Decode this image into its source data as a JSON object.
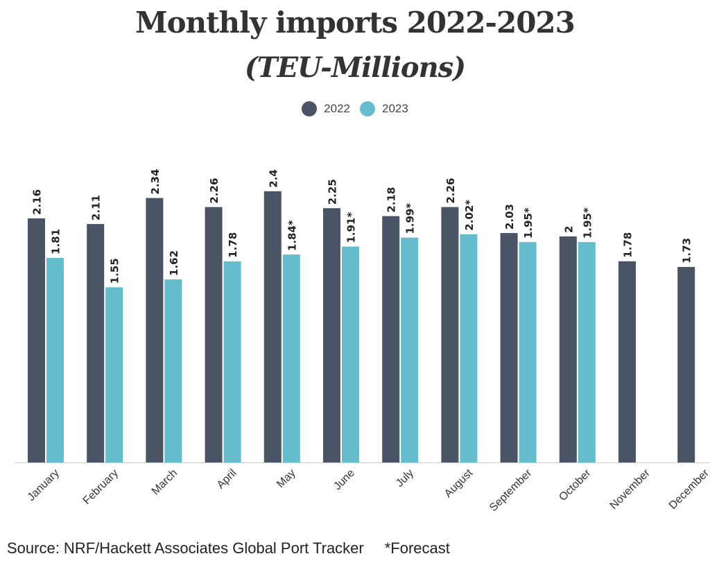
{
  "colors": {
    "series_2022": "#4a5464",
    "series_2023": "#64bccc",
    "axis": "#cccccc"
  },
  "chart_data": {
    "type": "bar",
    "title": "Monthly imports 2022-2023",
    "subtitle": "(TEU-Millions)",
    "legend_position": "top-center",
    "grid": false,
    "ylim": [
      0,
      2.6
    ],
    "categories": [
      "January",
      "February",
      "March",
      "April",
      "May",
      "June",
      "July",
      "August",
      "September",
      "October",
      "November",
      "December"
    ],
    "series": [
      {
        "name": "2022",
        "values": [
          2.16,
          2.11,
          2.34,
          2.26,
          2.4,
          2.25,
          2.18,
          2.26,
          2.03,
          2,
          1.78,
          1.73
        ],
        "labels": [
          "2.16",
          "2.11",
          "2.34",
          "2.26",
          "2.4",
          "2.25",
          "2.18",
          "2.26",
          "2.03",
          "2",
          "1.78",
          "1.73"
        ]
      },
      {
        "name": "2023",
        "values": [
          1.81,
          1.55,
          1.62,
          1.78,
          1.84,
          1.91,
          1.99,
          2.02,
          1.95,
          1.95,
          null,
          null
        ],
        "labels": [
          "1.81",
          "1.55",
          "1.62",
          "1.78",
          "1.84*",
          "1.91*",
          "1.99*",
          "2.02*",
          "1.95*",
          "1.95*",
          null,
          null
        ]
      }
    ]
  },
  "footer": {
    "source": "Source: NRF/Hackett Associates Global Port Tracker",
    "note": "*Forecast"
  }
}
